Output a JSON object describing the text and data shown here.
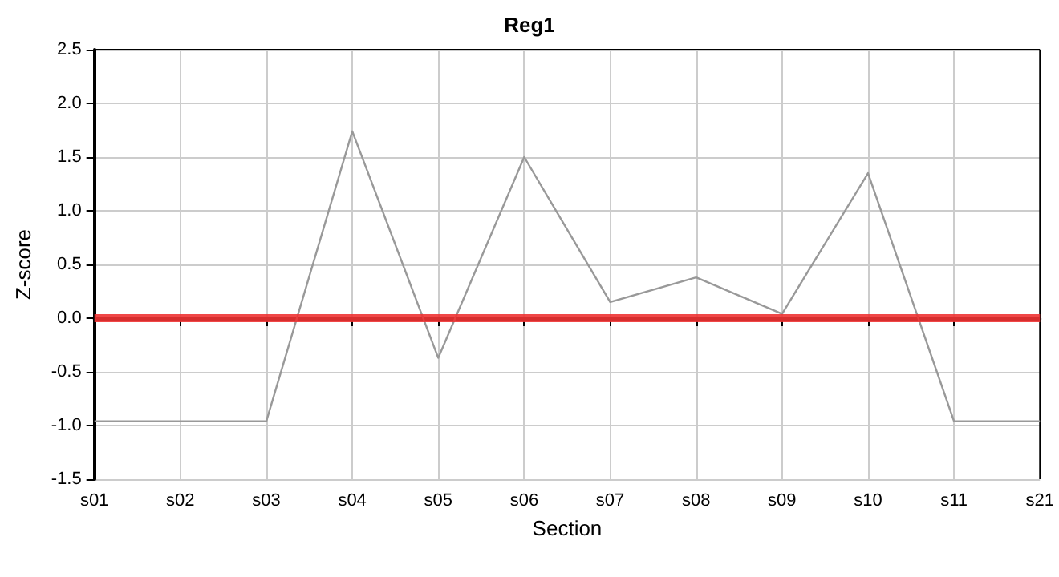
{
  "chart_data": {
    "type": "line",
    "title": "Reg1",
    "xlabel": "Section",
    "ylabel": "Z-score",
    "categories": [
      "s01",
      "s02",
      "s03",
      "s04",
      "s05",
      "s06",
      "s07",
      "s08",
      "s09",
      "s10",
      "s11",
      "s21"
    ],
    "series": [
      {
        "color": "#999999",
        "values": [
          -0.96,
          -0.96,
          -0.96,
          1.74,
          -0.37,
          1.5,
          0.15,
          0.38,
          0.04,
          1.35,
          -0.96,
          -0.96
        ]
      }
    ],
    "ylim": [
      -1.5,
      2.5
    ],
    "yticks": [
      -1.5,
      {
        "value": -1,
        "label": "-1.0"
      },
      -0.5,
      {
        "value": 0,
        "label": "0.0"
      },
      0.5,
      {
        "value": 1,
        "label": "1.0"
      },
      1.5,
      {
        "value": 2,
        "label": "2.0"
      },
      2.5
    ],
    "ref_lines": [
      {
        "axis": "y",
        "value": 0,
        "color": "#ee3333",
        "line_style": "solid"
      }
    ],
    "grid": true,
    "marker": "none",
    "line_style": "solid"
  }
}
